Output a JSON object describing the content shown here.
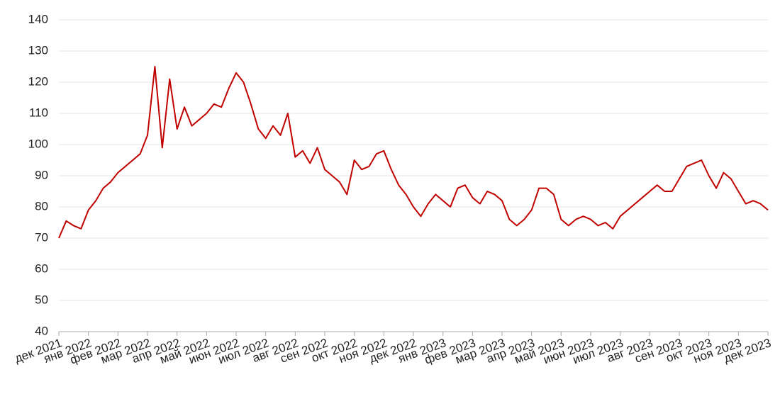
{
  "chart_data": {
    "type": "line",
    "categories": [
      "дек 2021",
      null,
      null,
      null,
      "янв 2022",
      null,
      null,
      null,
      "фев 2022",
      null,
      null,
      null,
      "мар 2022",
      null,
      null,
      null,
      "апр 2022",
      null,
      null,
      null,
      "май 2022",
      null,
      null,
      null,
      "июн 2022",
      null,
      null,
      null,
      "июл 2022",
      null,
      null,
      null,
      "авг 2022",
      null,
      null,
      null,
      "сен 2022",
      null,
      null,
      null,
      "окт 2022",
      null,
      null,
      null,
      "ноя 2022",
      null,
      null,
      null,
      "дек 2022",
      null,
      null,
      null,
      "янв 2023",
      null,
      null,
      null,
      "фев 2023",
      null,
      null,
      null,
      "мар 2023",
      null,
      null,
      null,
      "апр 2023",
      null,
      null,
      null,
      "май 2023",
      null,
      null,
      null,
      "июн 2023",
      null,
      null,
      null,
      "июл 2023",
      null,
      null,
      null,
      "авг 2023",
      null,
      null,
      null,
      "сен 2023",
      null,
      null,
      null,
      "окт 2023",
      null,
      null,
      null,
      "ноя 2023",
      null,
      null,
      null,
      "дек 2023"
    ],
    "series": [
      {
        "color": "#c00000",
        "values": [
          70,
          75.5,
          74,
          73,
          79,
          82,
          86,
          88,
          91,
          93,
          95,
          97,
          103,
          125,
          99,
          121,
          105,
          112,
          106,
          108,
          110,
          113,
          112,
          118,
          123,
          120,
          113,
          105,
          102,
          106,
          103,
          110,
          96,
          98,
          94,
          99,
          92,
          90,
          88,
          84,
          95,
          92,
          93,
          97,
          98,
          92,
          87,
          84,
          80,
          77,
          81,
          84,
          82,
          80,
          86,
          87,
          83,
          81,
          85,
          84,
          82,
          76,
          74,
          76,
          79,
          86,
          86,
          84,
          76,
          74,
          76,
          77,
          76,
          74,
          75,
          73,
          77,
          79,
          81,
          83,
          85,
          87,
          85,
          85,
          89,
          93,
          94,
          95,
          90,
          86,
          91,
          89,
          85,
          81,
          82,
          81,
          79
        ]
      }
    ],
    "ylim": [
      40,
      140
    ],
    "yticks": [
      40,
      50,
      60,
      70,
      80,
      90,
      100,
      110,
      120,
      130,
      140
    ],
    "grid": true
  }
}
